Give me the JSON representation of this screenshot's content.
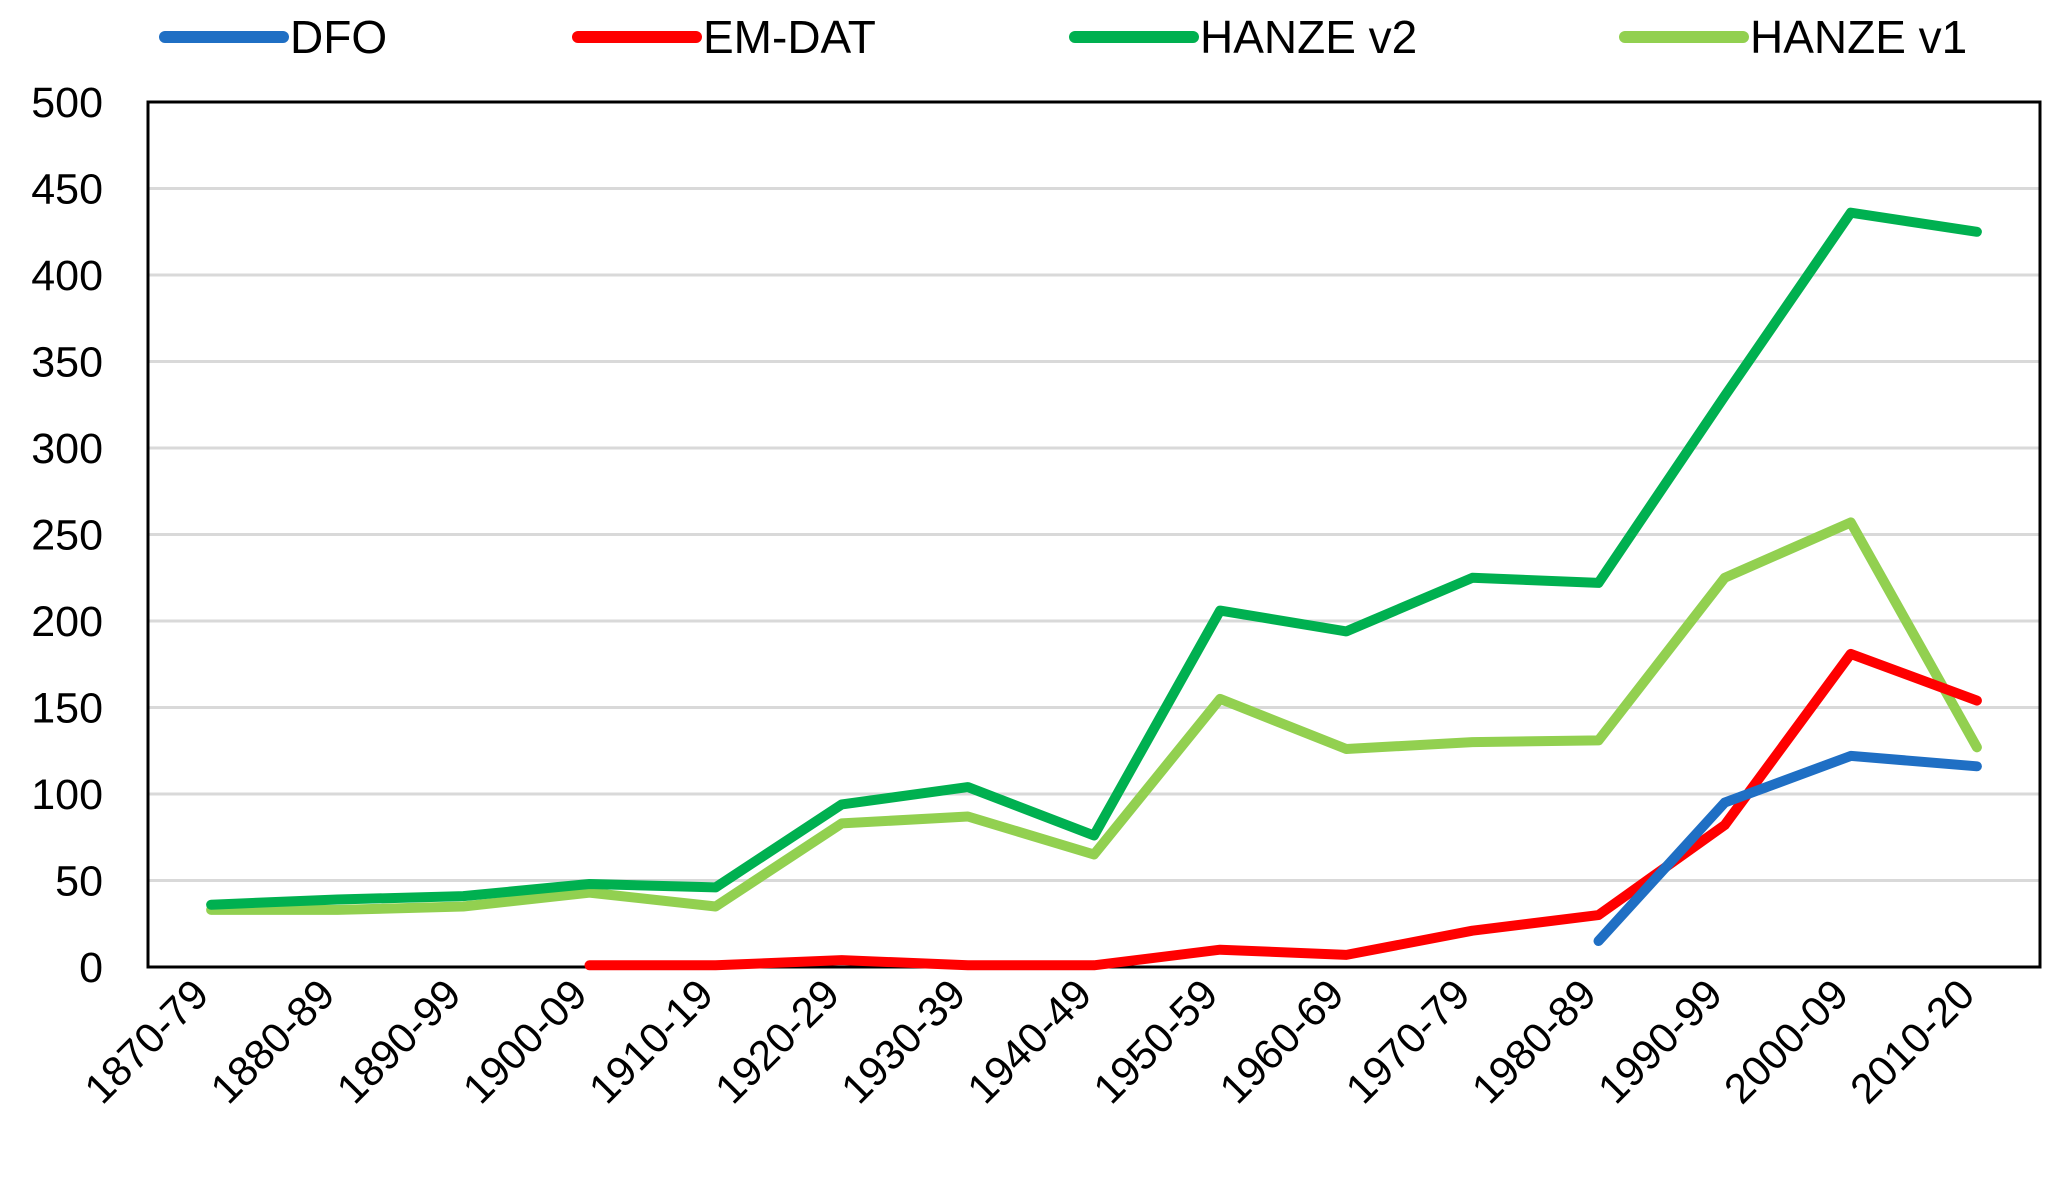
{
  "chart_data": {
    "type": "line",
    "title": "",
    "xlabel": "",
    "ylabel": "",
    "ylim": [
      0,
      500
    ],
    "yticks": [
      0,
      50,
      100,
      150,
      200,
      250,
      300,
      350,
      400,
      450,
      500
    ],
    "grid": true,
    "legend_position": "top",
    "categories": [
      "1870-79",
      "1880-89",
      "1890-99",
      "1900-09",
      "1910-19",
      "1920-29",
      "1930-39",
      "1940-49",
      "1950-59",
      "1960-69",
      "1970-79",
      "1980-89",
      "1990-99",
      "2000-09",
      "2010-20"
    ],
    "series": [
      {
        "name": "DFO",
        "color": "#1f6fc4",
        "values": [
          null,
          null,
          null,
          null,
          null,
          null,
          null,
          null,
          null,
          null,
          null,
          15,
          95,
          122,
          116
        ]
      },
      {
        "name": "EM-DAT",
        "color": "#ff0000",
        "values": [
          null,
          null,
          null,
          1,
          1,
          4,
          1,
          1,
          10,
          7,
          21,
          30,
          82,
          181,
          154
        ]
      },
      {
        "name": "HANZE v2",
        "color": "#00b050",
        "values": [
          36,
          39,
          41,
          48,
          46,
          94,
          104,
          76,
          206,
          194,
          225,
          222,
          330,
          436,
          425
        ]
      },
      {
        "name": "HANZE v1",
        "color": "#92d050",
        "values": [
          33,
          33,
          35,
          43,
          35,
          83,
          87,
          65,
          155,
          126,
          130,
          131,
          225,
          257,
          127
        ]
      }
    ]
  }
}
